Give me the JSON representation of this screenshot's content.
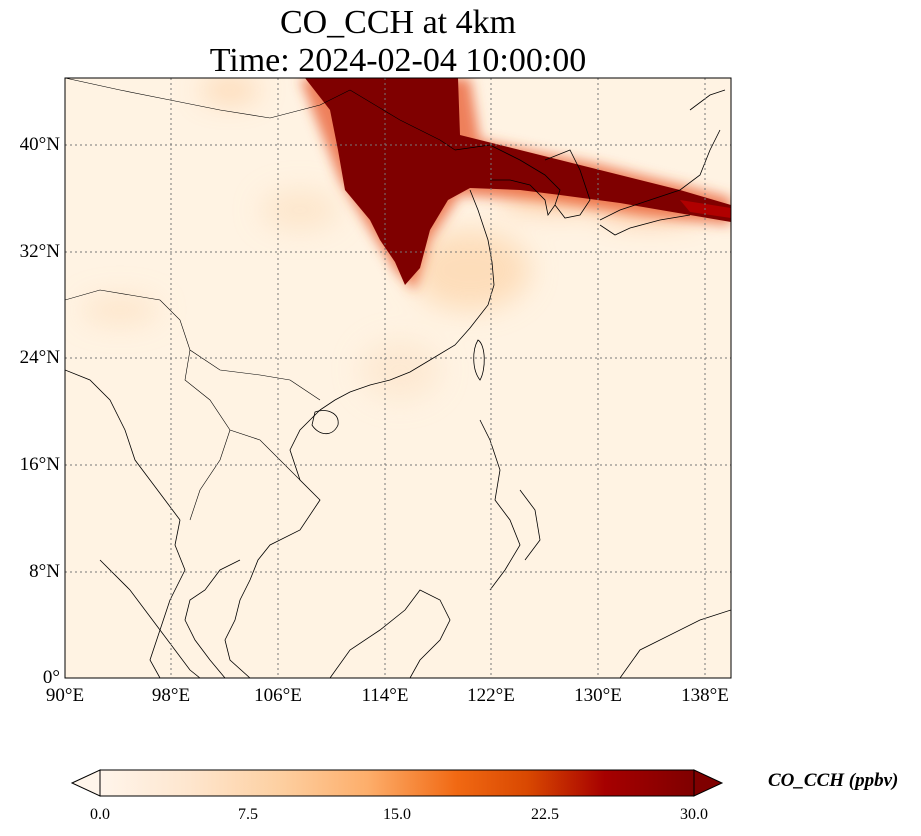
{
  "title_line1": "CO_CCH at 4km",
  "title_line2": "Time: 2024-02-04 10:00:00",
  "lat_ticks": [
    {
      "label": "40°N",
      "value": 40
    },
    {
      "label": "32°N",
      "value": 32
    },
    {
      "label": "24°N",
      "value": 24
    },
    {
      "label": "16°N",
      "value": 16
    },
    {
      "label": "8°N",
      "value": 8
    },
    {
      "label": "0°",
      "value": 0
    }
  ],
  "lon_ticks": [
    {
      "label": "90°E",
      "value": 90
    },
    {
      "label": "98°E",
      "value": 98
    },
    {
      "label": "106°E",
      "value": 106
    },
    {
      "label": "114°E",
      "value": 114
    },
    {
      "label": "122°E",
      "value": 122
    },
    {
      "label": "130°E",
      "value": 130
    },
    {
      "label": "138°E",
      "value": 138
    }
  ],
  "extent": {
    "lon_min": 90,
    "lon_max": 140,
    "lat_min": 0,
    "lat_max": 45
  },
  "colorbar": {
    "label": "CO_CCH (ppbv)",
    "ticks": [
      "0.0",
      "7.5",
      "15.0",
      "22.5",
      "30.0"
    ],
    "min": 0,
    "max": 30,
    "colors": [
      "#fff5eb",
      "#fdd49e",
      "#fdbb84",
      "#fc8d59",
      "#ef6548",
      "#d7301f",
      "#b30000",
      "#7f0000"
    ]
  }
}
